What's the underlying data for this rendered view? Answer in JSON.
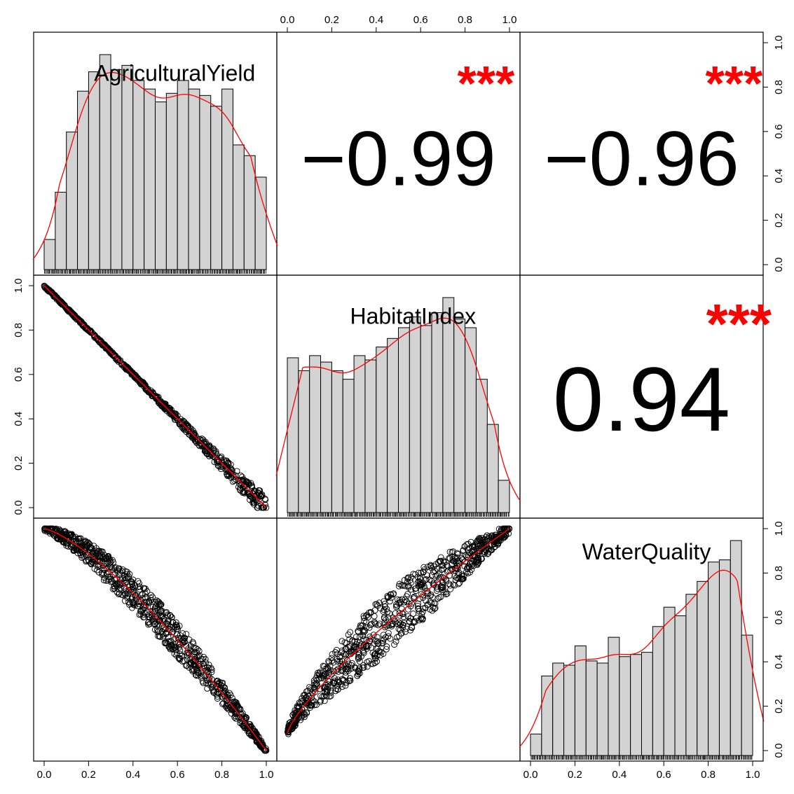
{
  "chart_data": {
    "type": "scatter",
    "kind": "pairs-correlation-matrix",
    "variables": [
      "AgriculturalYield",
      "HabitatIndex",
      "WaterQuality"
    ],
    "axis_range": [
      0,
      1
    ],
    "ticks": [
      0.0,
      0.2,
      0.4,
      0.6,
      0.8,
      1.0
    ],
    "tick_labels": [
      "0.0",
      "0.2",
      "0.4",
      "0.6",
      "0.8",
      "1.0"
    ],
    "histograms": [
      {
        "variable": "AgriculturalYield",
        "bin_width": 0.05,
        "relative_heights": [
          0.14,
          0.36,
          0.64,
          0.83,
          0.92,
          1.0,
          0.93,
          0.95,
          0.88,
          0.84,
          0.78,
          0.82,
          0.88,
          0.84,
          0.81,
          0.76,
          0.84,
          0.58,
          0.53,
          0.43
        ]
      },
      {
        "variable": "HabitatIndex",
        "bin_width": 0.05,
        "relative_heights": [
          0.72,
          0.66,
          0.73,
          0.7,
          0.66,
          0.62,
          0.73,
          0.71,
          0.77,
          0.81,
          0.86,
          0.91,
          0.87,
          0.93,
          1.0,
          0.9,
          0.86,
          0.62,
          0.41,
          0.15
        ]
      },
      {
        "variable": "WaterQuality",
        "bin_width": 0.05,
        "relative_heights": [
          0.1,
          0.37,
          0.43,
          0.42,
          0.51,
          0.44,
          0.43,
          0.55,
          0.46,
          0.47,
          0.48,
          0.6,
          0.69,
          0.65,
          0.75,
          0.81,
          0.9,
          0.91,
          1.0,
          0.56
        ]
      }
    ],
    "correlations": [
      {
        "pair": [
          "AgriculturalYield",
          "HabitatIndex"
        ],
        "value": "−0.99",
        "stars": "***"
      },
      {
        "pair": [
          "AgriculturalYield",
          "WaterQuality"
        ],
        "value": "−0.96",
        "stars": "***"
      },
      {
        "pair": [
          "HabitatIndex",
          "WaterQuality"
        ],
        "value": "0.94",
        "stars": "***"
      }
    ],
    "scatter_relations": [
      {
        "x": "AgriculturalYield",
        "y": "HabitatIndex",
        "trend": "y ≈ 1 − x",
        "scatter_increases_toward_x": 1.0
      },
      {
        "x": "AgriculturalYield",
        "y": "WaterQuality",
        "trend": "concave decreasing from 1.0 at x=0 to 0.0 at x=1"
      },
      {
        "x": "HabitatIndex",
        "y": "WaterQuality",
        "trend": "concave increasing from ~0.1 at x=0 to 1.0 at x=1"
      }
    ],
    "colors": {
      "bar_fill": "#d3d3d3",
      "outline": "#000000",
      "density_line": "#ff0000",
      "stars": "#ff0000",
      "background": "#ffffff"
    }
  }
}
